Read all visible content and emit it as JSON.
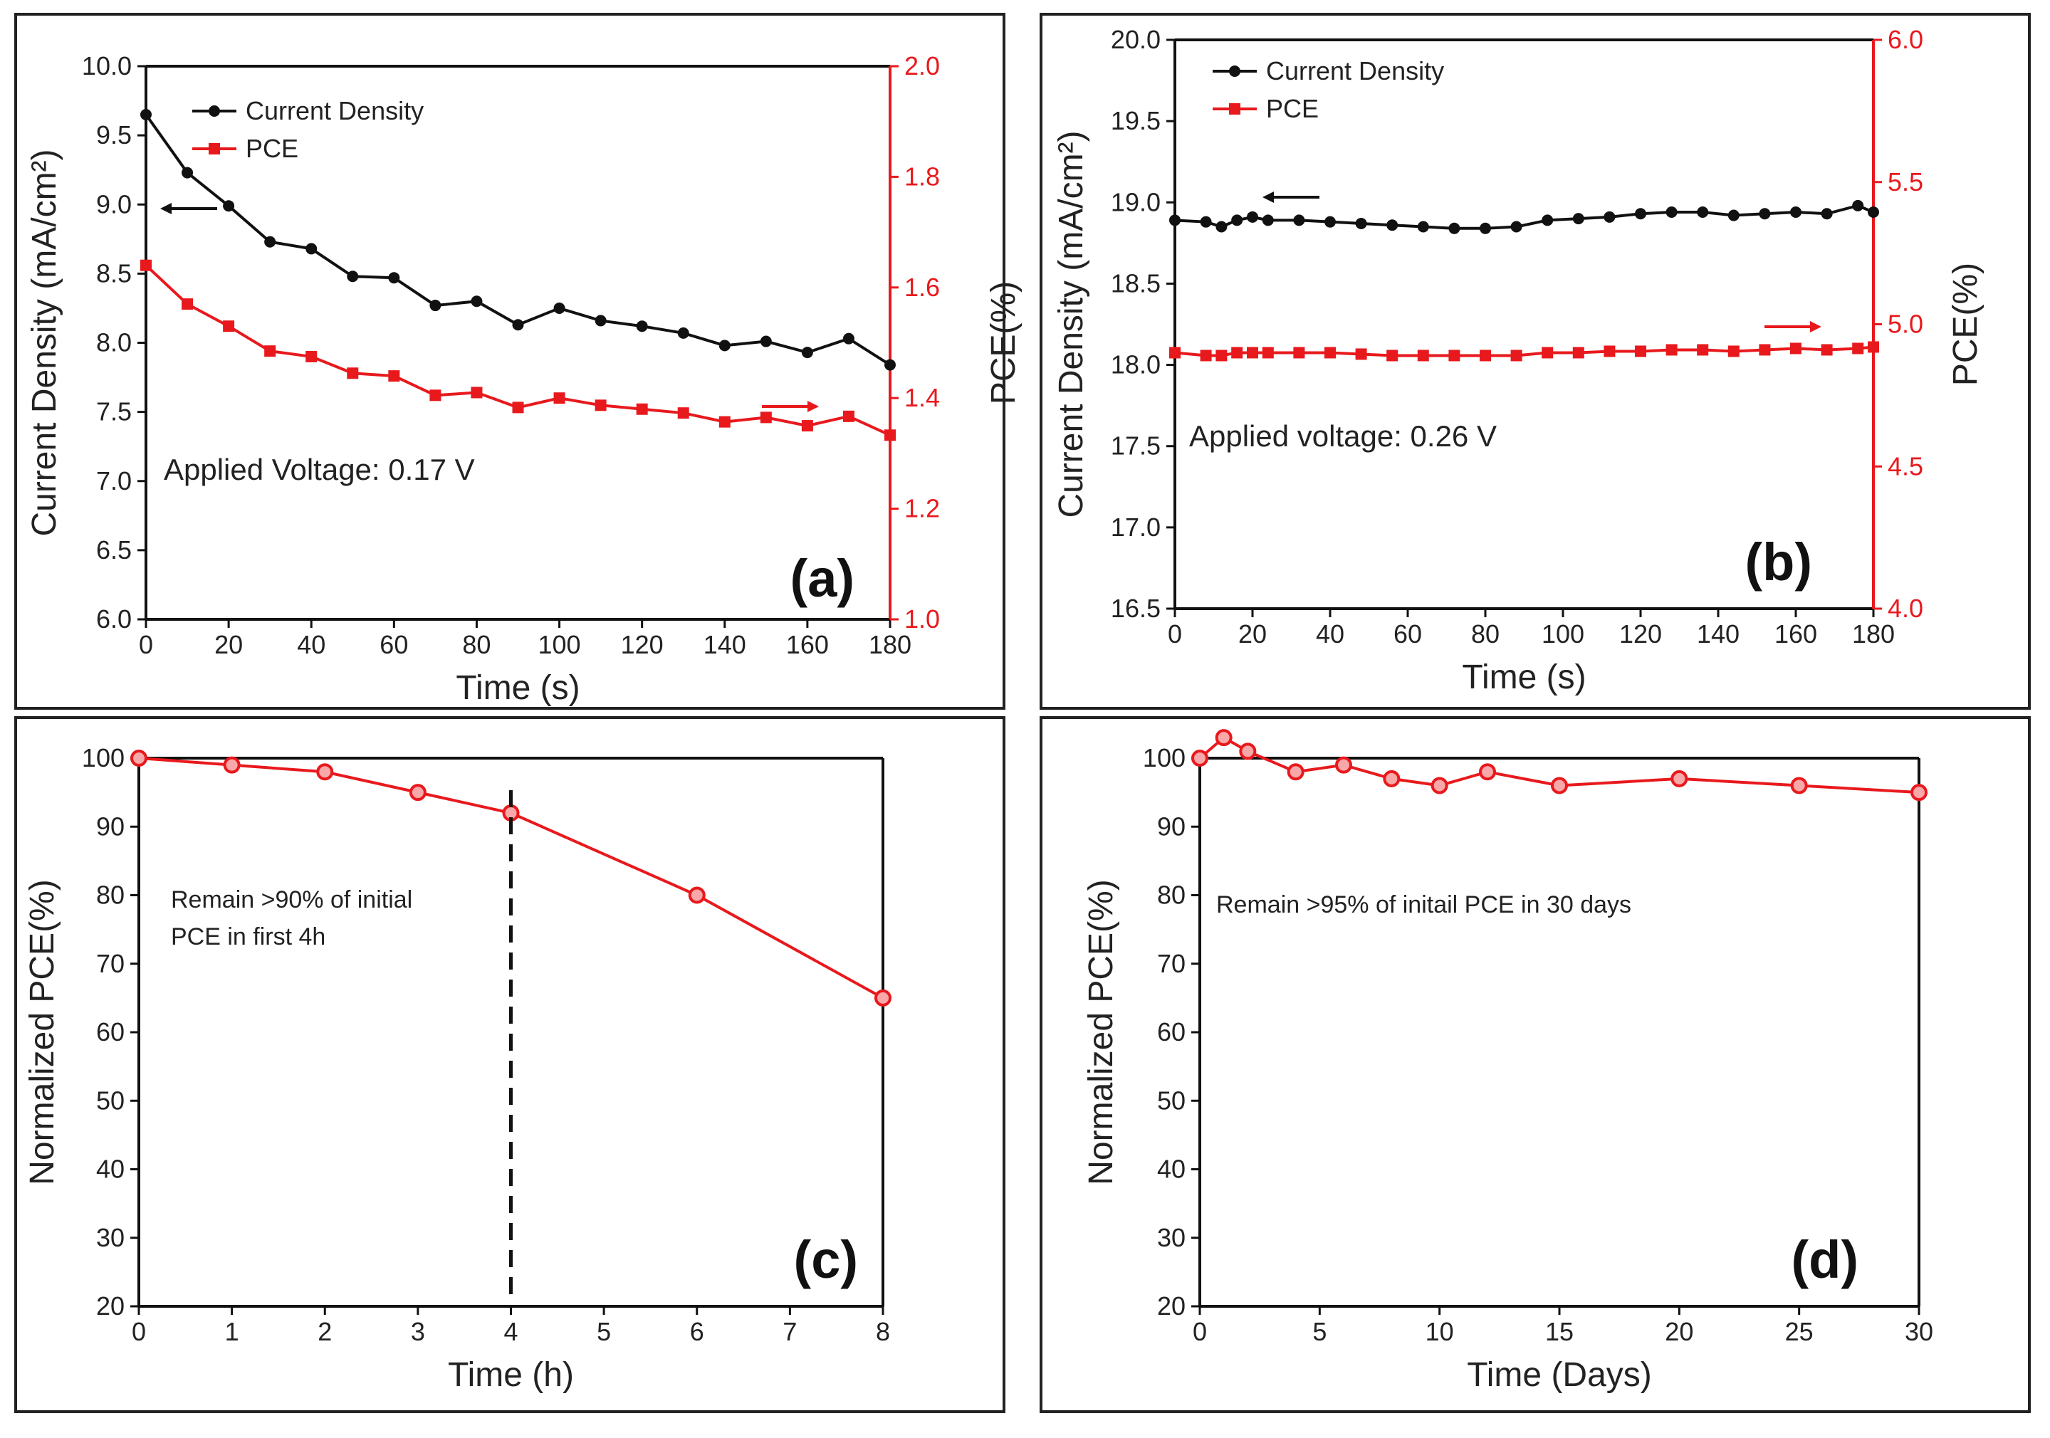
{
  "chart_data": [
    {
      "id": "a",
      "type": "line",
      "panel_label": "(a)",
      "xlabel": "Time (s)",
      "ylabel": "Current Density (mA/cm²)",
      "y2label": "PCE(%)",
      "xlim": [
        0,
        180
      ],
      "ylim": [
        6.0,
        10.0
      ],
      "y2lim": [
        1.0,
        2.0
      ],
      "xticks": [
        0,
        20,
        40,
        60,
        80,
        100,
        120,
        140,
        160,
        180
      ],
      "yticks": [
        "6.0",
        "6.5",
        "7.0",
        "7.5",
        "8.0",
        "8.5",
        "9.0",
        "9.5",
        "10.0"
      ],
      "y2ticks": [
        "1.0",
        "1.2",
        "1.4",
        "1.6",
        "1.8",
        "2.0"
      ],
      "annotation": "Applied Voltage: 0.17 V",
      "legend": [
        "Current Density",
        "PCE"
      ],
      "x": [
        0,
        10,
        20,
        30,
        40,
        50,
        60,
        70,
        80,
        90,
        100,
        110,
        120,
        130,
        140,
        150,
        160,
        170,
        180
      ],
      "series": [
        {
          "name": "Current Density",
          "axis": "left",
          "color": "#111111",
          "marker": "circle",
          "values": [
            9.65,
            9.23,
            8.99,
            8.73,
            8.68,
            8.48,
            8.47,
            8.27,
            8.3,
            8.13,
            8.25,
            8.16,
            8.12,
            8.07,
            7.98,
            8.01,
            7.93,
            8.03,
            7.84
          ]
        },
        {
          "name": "PCE",
          "axis": "right",
          "color": "#e8191d",
          "marker": "square",
          "values": [
            1.64,
            1.57,
            1.53,
            1.485,
            1.475,
            1.445,
            1.44,
            1.405,
            1.41,
            1.383,
            1.4,
            1.387,
            1.38,
            1.373,
            1.357,
            1.365,
            1.35,
            1.367,
            1.333
          ]
        }
      ]
    },
    {
      "id": "b",
      "type": "line",
      "panel_label": "(b)",
      "xlabel": "Time (s)",
      "ylabel": "Current Density (mA/cm²)",
      "y2label": "PCE(%)",
      "xlim": [
        0,
        180
      ],
      "ylim": [
        16.5,
        20.0
      ],
      "y2lim": [
        4.0,
        6.0
      ],
      "xticks": [
        0,
        20,
        40,
        60,
        80,
        100,
        120,
        140,
        160,
        180
      ],
      "yticks": [
        "16.5",
        "17.0",
        "17.5",
        "18.0",
        "18.5",
        "19.0",
        "19.5",
        "20.0"
      ],
      "y2ticks": [
        "4.0",
        "4.5",
        "5.0",
        "5.5",
        "6.0"
      ],
      "annotation": "Applied voltage: 0.26 V",
      "legend": [
        "Current Density",
        "PCE"
      ],
      "x": [
        0,
        8,
        12,
        16,
        20,
        24,
        32,
        40,
        48,
        56,
        64,
        72,
        80,
        88,
        96,
        104,
        112,
        120,
        128,
        136,
        144,
        152,
        160,
        168,
        176,
        180
      ],
      "series": [
        {
          "name": "Current Density",
          "axis": "left",
          "color": "#111111",
          "marker": "circle",
          "values": [
            18.89,
            18.88,
            18.85,
            18.89,
            18.91,
            18.89,
            18.89,
            18.88,
            18.87,
            18.86,
            18.85,
            18.84,
            18.84,
            18.85,
            18.89,
            18.9,
            18.91,
            18.93,
            18.94,
            18.94,
            18.92,
            18.93,
            18.94,
            18.93,
            18.98,
            18.94
          ]
        },
        {
          "name": "PCE",
          "axis": "right",
          "color": "#e8191d",
          "marker": "square",
          "values": [
            4.9,
            4.89,
            4.89,
            4.9,
            4.9,
            4.9,
            4.9,
            4.9,
            4.895,
            4.89,
            4.89,
            4.89,
            4.89,
            4.89,
            4.9,
            4.9,
            4.905,
            4.905,
            4.91,
            4.91,
            4.905,
            4.91,
            4.915,
            4.91,
            4.915,
            4.92
          ]
        }
      ]
    },
    {
      "id": "c",
      "type": "line",
      "panel_label": "(c)",
      "xlabel": "Time (h)",
      "ylabel": "Normalized PCE(%)",
      "xlim": [
        0,
        8
      ],
      "ylim": [
        20,
        100
      ],
      "xticks": [
        0,
        1,
        2,
        3,
        4,
        5,
        6,
        7,
        8
      ],
      "yticks": [
        20,
        30,
        40,
        50,
        60,
        70,
        80,
        90,
        100
      ],
      "annotation_lines": [
        "Remain >90% of initial",
        "PCE in first 4h"
      ],
      "vline_x": 4,
      "x": [
        0,
        1,
        2,
        3,
        4,
        6,
        8
      ],
      "series": [
        {
          "name": "Normalized PCE",
          "color": "#e8191d",
          "marker": "circle",
          "values": [
            100,
            99,
            98,
            95,
            92,
            80,
            65
          ]
        }
      ]
    },
    {
      "id": "d",
      "type": "line",
      "panel_label": "(d)",
      "xlabel": "Time (Days)",
      "ylabel": "Normalized PCE(%)",
      "xlim": [
        0,
        30
      ],
      "ylim": [
        20,
        100
      ],
      "xticks": [
        0,
        5,
        10,
        15,
        20,
        25,
        30
      ],
      "yticks": [
        20,
        30,
        40,
        50,
        60,
        70,
        80,
        90,
        100
      ],
      "annotation": "Remain >95% of initail PCE in 30 days",
      "x": [
        0,
        1,
        2,
        4,
        6,
        8,
        10,
        12,
        15,
        20,
        25,
        30
      ],
      "series": [
        {
          "name": "Normalized PCE",
          "color": "#e8191d",
          "marker": "circle",
          "values": [
            100,
            103,
            101,
            98,
            99,
            97,
            96,
            98,
            96,
            97,
            96,
            95
          ]
        }
      ]
    }
  ]
}
